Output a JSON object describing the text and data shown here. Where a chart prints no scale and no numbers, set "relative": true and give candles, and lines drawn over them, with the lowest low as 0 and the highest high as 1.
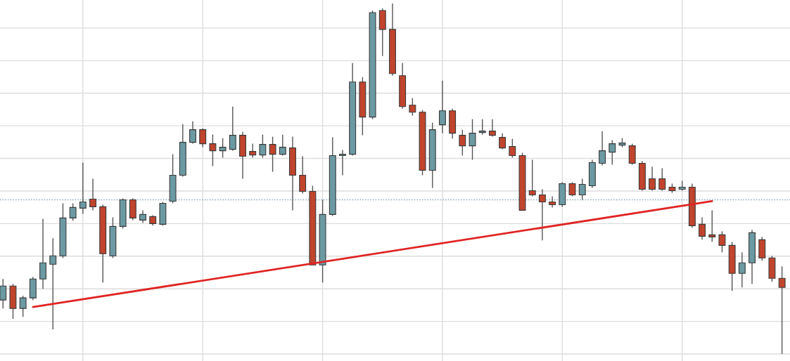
{
  "chart_data": {
    "type": "candlestick",
    "relative": true,
    "grid": true,
    "categories": [
      null,
      null,
      null,
      null,
      null,
      null,
      null,
      null,
      null,
      null,
      null,
      null,
      null,
      null,
      null,
      null,
      null,
      null,
      null,
      null,
      null,
      null,
      null,
      null,
      null,
      null,
      null,
      null,
      null,
      null,
      null,
      null,
      null,
      null,
      null,
      null,
      null,
      null,
      null,
      null,
      null,
      null,
      null,
      null,
      null,
      null,
      null,
      null,
      null,
      null,
      null,
      null,
      null,
      null,
      null,
      null,
      null,
      null,
      null,
      null,
      null,
      null,
      null,
      null,
      null,
      null,
      null,
      null,
      null,
      null,
      null,
      null,
      null,
      null,
      null,
      null,
      null,
      null,
      null
    ],
    "ohlc": [
      [
        0.154,
        0.214,
        0.13,
        0.194
      ],
      [
        0.194,
        0.2,
        0.1,
        0.13
      ],
      [
        0.13,
        0.166,
        0.106,
        0.16
      ],
      [
        0.16,
        0.22,
        0.154,
        0.214
      ],
      [
        0.214,
        0.386,
        0.186,
        0.26
      ],
      [
        0.256,
        0.33,
        0.07,
        0.28
      ],
      [
        0.28,
        0.43,
        0.274,
        0.388
      ],
      [
        0.388,
        0.43,
        0.38,
        0.418
      ],
      [
        0.416,
        0.546,
        0.4,
        0.434
      ],
      [
        0.442,
        0.5,
        0.41,
        0.42
      ],
      [
        0.42,
        0.426,
        0.204,
        0.286
      ],
      [
        0.28,
        0.39,
        0.274,
        0.364
      ],
      [
        0.364,
        0.444,
        0.358,
        0.44
      ],
      [
        0.44,
        0.444,
        0.382,
        0.388
      ],
      [
        0.382,
        0.41,
        0.374,
        0.398
      ],
      [
        0.392,
        0.396,
        0.366,
        0.372
      ],
      [
        0.37,
        0.434,
        0.366,
        0.43
      ],
      [
        0.436,
        0.57,
        0.43,
        0.51
      ],
      [
        0.51,
        0.656,
        0.506,
        0.604
      ],
      [
        0.604,
        0.664,
        0.6,
        0.64
      ],
      [
        0.64,
        0.644,
        0.59,
        0.6
      ],
      [
        0.6,
        0.626,
        0.536,
        0.58
      ],
      [
        0.58,
        0.616,
        0.56,
        0.59
      ],
      [
        0.584,
        0.706,
        0.58,
        0.624
      ],
      [
        0.624,
        0.634,
        0.5,
        0.564
      ],
      [
        0.578,
        0.6,
        0.56,
        0.568
      ],
      [
        0.568,
        0.626,
        0.56,
        0.598
      ],
      [
        0.598,
        0.62,
        0.52,
        0.57
      ],
      [
        0.57,
        0.626,
        0.566,
        0.59
      ],
      [
        0.588,
        0.62,
        0.41,
        0.51
      ],
      [
        0.51,
        0.564,
        0.458,
        0.464
      ],
      [
        0.464,
        0.48,
        0.254,
        0.254
      ],
      [
        0.254,
        0.44,
        0.204,
        0.398
      ],
      [
        0.398,
        0.618,
        0.394,
        0.566
      ],
      [
        0.566,
        0.582,
        0.51,
        0.57
      ],
      [
        0.57,
        0.83,
        0.566,
        0.776
      ],
      [
        0.776,
        0.79,
        0.624,
        0.676
      ],
      [
        0.676,
        0.98,
        0.67,
        0.974
      ],
      [
        0.98,
        0.986,
        0.85,
        0.926
      ],
      [
        0.926,
        1.0,
        0.794,
        0.8
      ],
      [
        0.794,
        0.83,
        0.7,
        0.706
      ],
      [
        0.71,
        0.73,
        0.68,
        0.69
      ],
      [
        0.69,
        0.696,
        0.51,
        0.524
      ],
      [
        0.524,
        0.66,
        0.474,
        0.64
      ],
      [
        0.654,
        0.78,
        0.63,
        0.694
      ],
      [
        0.694,
        0.7,
        0.614,
        0.63
      ],
      [
        0.624,
        0.64,
        0.566,
        0.594
      ],
      [
        0.594,
        0.67,
        0.554,
        0.63
      ],
      [
        0.632,
        0.67,
        0.626,
        0.636
      ],
      [
        0.636,
        0.67,
        0.62,
        0.624
      ],
      [
        0.618,
        0.63,
        0.584,
        0.588
      ],
      [
        0.592,
        0.614,
        0.56,
        0.566
      ],
      [
        0.566,
        0.574,
        0.41,
        0.41
      ],
      [
        0.466,
        0.554,
        0.45,
        0.454
      ],
      [
        0.454,
        0.47,
        0.324,
        0.434
      ],
      [
        0.434,
        0.45,
        0.418,
        0.426
      ],
      [
        0.426,
        0.49,
        0.42,
        0.486
      ],
      [
        0.486,
        0.49,
        0.45,
        0.454
      ],
      [
        0.454,
        0.5,
        0.44,
        0.484
      ],
      [
        0.48,
        0.554,
        0.474,
        0.546
      ],
      [
        0.544,
        0.636,
        0.538,
        0.58
      ],
      [
        0.576,
        0.61,
        0.54,
        0.6
      ],
      [
        0.596,
        0.616,
        0.59,
        0.602
      ],
      [
        0.594,
        0.6,
        0.54,
        0.544
      ],
      [
        0.544,
        0.55,
        0.466,
        0.47
      ],
      [
        0.5,
        0.534,
        0.466,
        0.47
      ],
      [
        0.5,
        0.53,
        0.466,
        0.47
      ],
      [
        0.476,
        0.486,
        0.46,
        0.466
      ],
      [
        0.47,
        0.494,
        0.466,
        0.476
      ],
      [
        0.476,
        0.486,
        0.36,
        0.366
      ],
      [
        0.37,
        0.39,
        0.326,
        0.336
      ],
      [
        0.34,
        0.41,
        0.32,
        0.334
      ],
      [
        0.34,
        0.35,
        0.29,
        0.31
      ],
      [
        0.31,
        0.32,
        0.18,
        0.23
      ],
      [
        0.23,
        0.29,
        0.19,
        0.26
      ],
      [
        0.26,
        0.354,
        0.2,
        0.346
      ],
      [
        0.326,
        0.334,
        0.266,
        0.274
      ],
      [
        0.274,
        0.28,
        0.206,
        0.216
      ],
      [
        0.216,
        0.25,
        0.0,
        0.19
      ]
    ],
    "colors": [
      "#6b9aa3",
      "#c1442d",
      "#6b9aa3",
      "#6b9aa3",
      "#6b9aa3",
      "#6b9aa3",
      "#6b9aa3",
      "#6b9aa3",
      "#6b9aa3",
      "#c1442d",
      "#c1442d",
      "#6b9aa3",
      "#6b9aa3",
      "#c1442d",
      "#6b9aa3",
      "#c1442d",
      "#6b9aa3",
      "#6b9aa3",
      "#6b9aa3",
      "#6b9aa3",
      "#c1442d",
      "#c1442d",
      "#6b9aa3",
      "#6b9aa3",
      "#c1442d",
      "#c1442d",
      "#6b9aa3",
      "#c1442d",
      "#6b9aa3",
      "#c1442d",
      "#c1442d",
      "#c1442d",
      "#6b9aa3",
      "#6b9aa3",
      "#6b9aa3",
      "#6b9aa3",
      "#c1442d",
      "#6b9aa3",
      "#c1442d",
      "#c1442d",
      "#c1442d",
      "#c1442d",
      "#c1442d",
      "#6b9aa3",
      "#6b9aa3",
      "#c1442d",
      "#c1442d",
      "#6b9aa3",
      "#6b9aa3",
      "#c1442d",
      "#c1442d",
      "#c1442d",
      "#c1442d",
      "#c1442d",
      "#c1442d",
      "#c1442d",
      "#6b9aa3",
      "#c1442d",
      "#6b9aa3",
      "#6b9aa3",
      "#6b9aa3",
      "#6b9aa3",
      "#6b9aa3",
      "#c1442d",
      "#c1442d",
      "#c1442d",
      "#c1442d",
      "#c1442d",
      "#6b9aa3",
      "#c1442d",
      "#c1442d",
      "#c1442d",
      "#c1442d",
      "#c1442d",
      "#6b9aa3",
      "#6b9aa3",
      "#c1442d",
      "#c1442d",
      "#c1442d"
    ],
    "series": [
      {
        "type": "line",
        "color": "#e02424",
        "values": [
          null,
          null,
          null,
          0.134,
          null,
          null,
          null,
          null,
          null,
          null,
          null,
          null,
          null,
          null,
          null,
          null,
          null,
          null,
          null,
          null,
          null,
          null,
          null,
          null,
          null,
          null,
          null,
          null,
          null,
          null,
          null,
          null,
          null,
          null,
          null,
          null,
          null,
          null,
          null,
          null,
          null,
          null,
          null,
          null,
          null,
          null,
          null,
          null,
          null,
          null,
          null,
          null,
          null,
          null,
          null,
          null,
          null,
          null,
          null,
          null,
          null,
          null,
          null,
          null,
          null,
          null,
          null,
          null,
          null,
          null,
          null,
          0.436,
          null,
          null,
          null,
          null,
          null,
          null,
          null
        ]
      }
    ],
    "ref_lines": [
      {
        "axis": "y",
        "value": 0.44,
        "color": "#7f9fb5",
        "line_style": "dotted"
      }
    ]
  }
}
